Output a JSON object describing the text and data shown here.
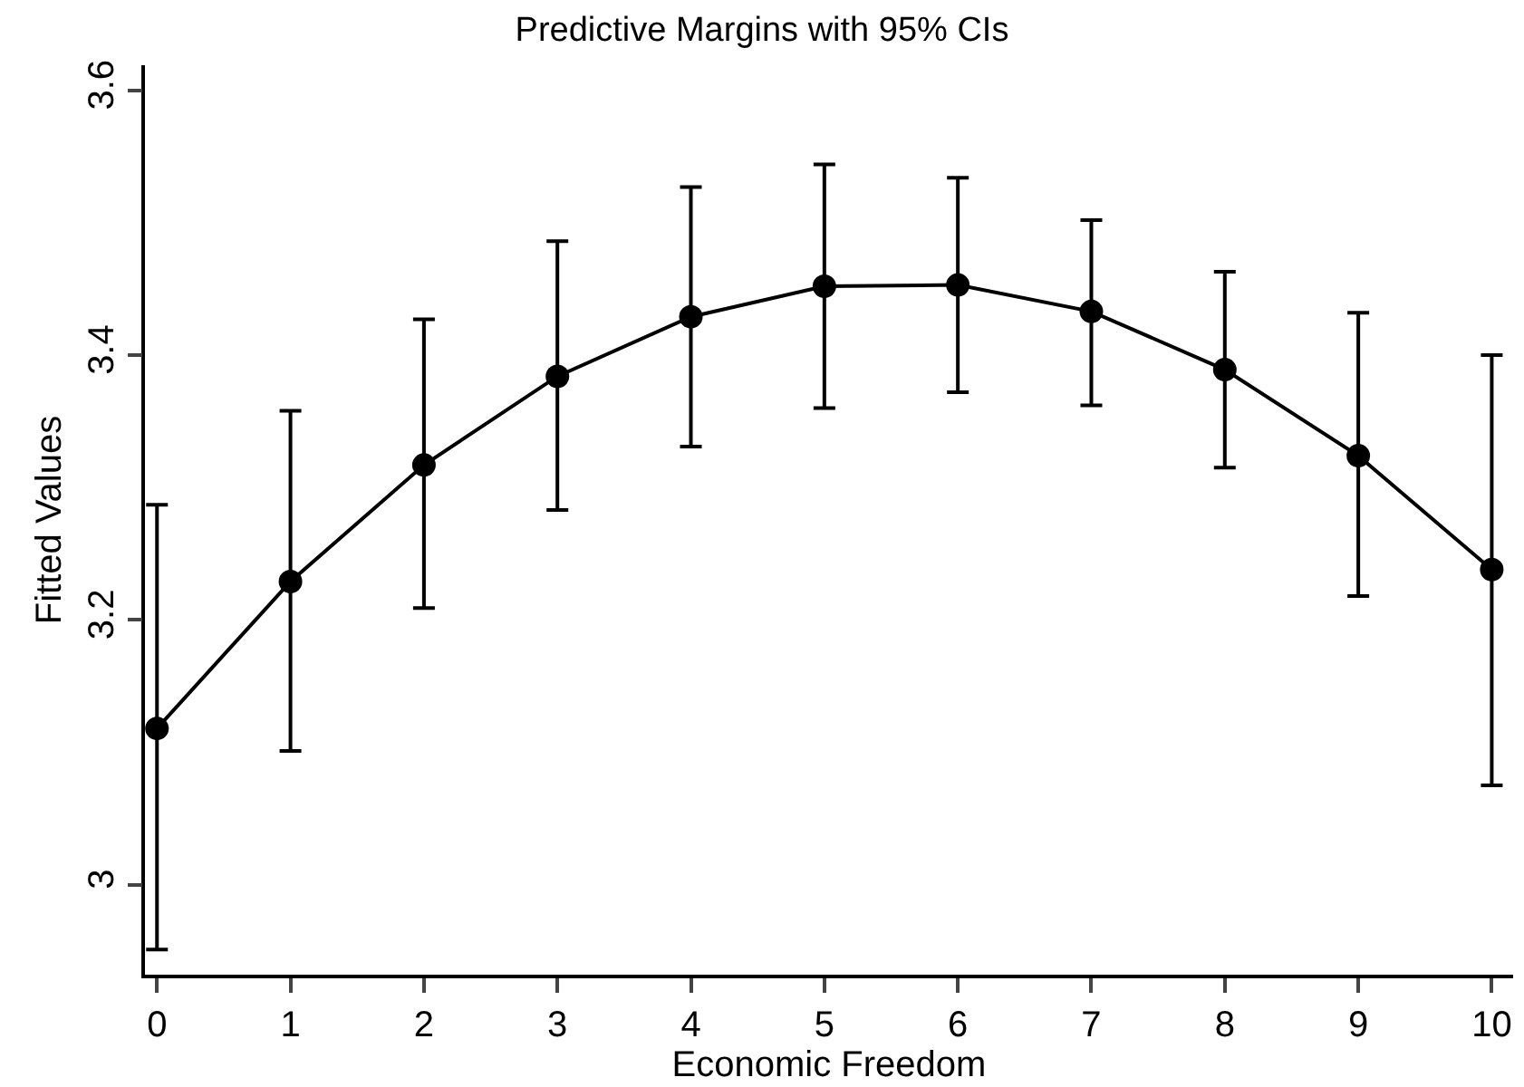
{
  "chart_data": {
    "type": "line",
    "title": "Predictive Margins with 95% CIs",
    "xlabel": "Economic Freedom",
    "ylabel": "Fitted Values",
    "x": [
      0,
      1,
      2,
      3,
      4,
      5,
      6,
      7,
      8,
      9,
      10
    ],
    "series": [
      {
        "color": "#000000",
        "values": [
          3.118,
          3.229,
          3.317,
          3.384,
          3.429,
          3.452,
          3.453,
          3.433,
          3.389,
          3.324,
          3.238
        ],
        "errors": [
          [
            2.951,
            3.287
          ],
          [
            3.101,
            3.358
          ],
          [
            3.209,
            3.427
          ],
          [
            3.283,
            3.486
          ],
          [
            3.331,
            3.527
          ],
          [
            3.36,
            3.544
          ],
          [
            3.372,
            3.534
          ],
          [
            3.362,
            3.502
          ],
          [
            3.315,
            3.463
          ],
          [
            3.218,
            3.432
          ],
          [
            3.075,
            3.4
          ]
        ]
      }
    ],
    "xlim": [
      -0.09,
      10.16
    ],
    "xticks": [
      0,
      1,
      2,
      3,
      4,
      5,
      6,
      7,
      8,
      9,
      10
    ],
    "ylim": [
      2.932,
      3.619
    ],
    "yticks": [
      3,
      {
        "value": 3.2,
        "label": "3.2"
      },
      {
        "value": 3.4,
        "label": "3.4"
      },
      {
        "value": 3.6,
        "label": "3.6"
      }
    ],
    "grid": false,
    "marker": "circle",
    "line_style": "solid"
  }
}
